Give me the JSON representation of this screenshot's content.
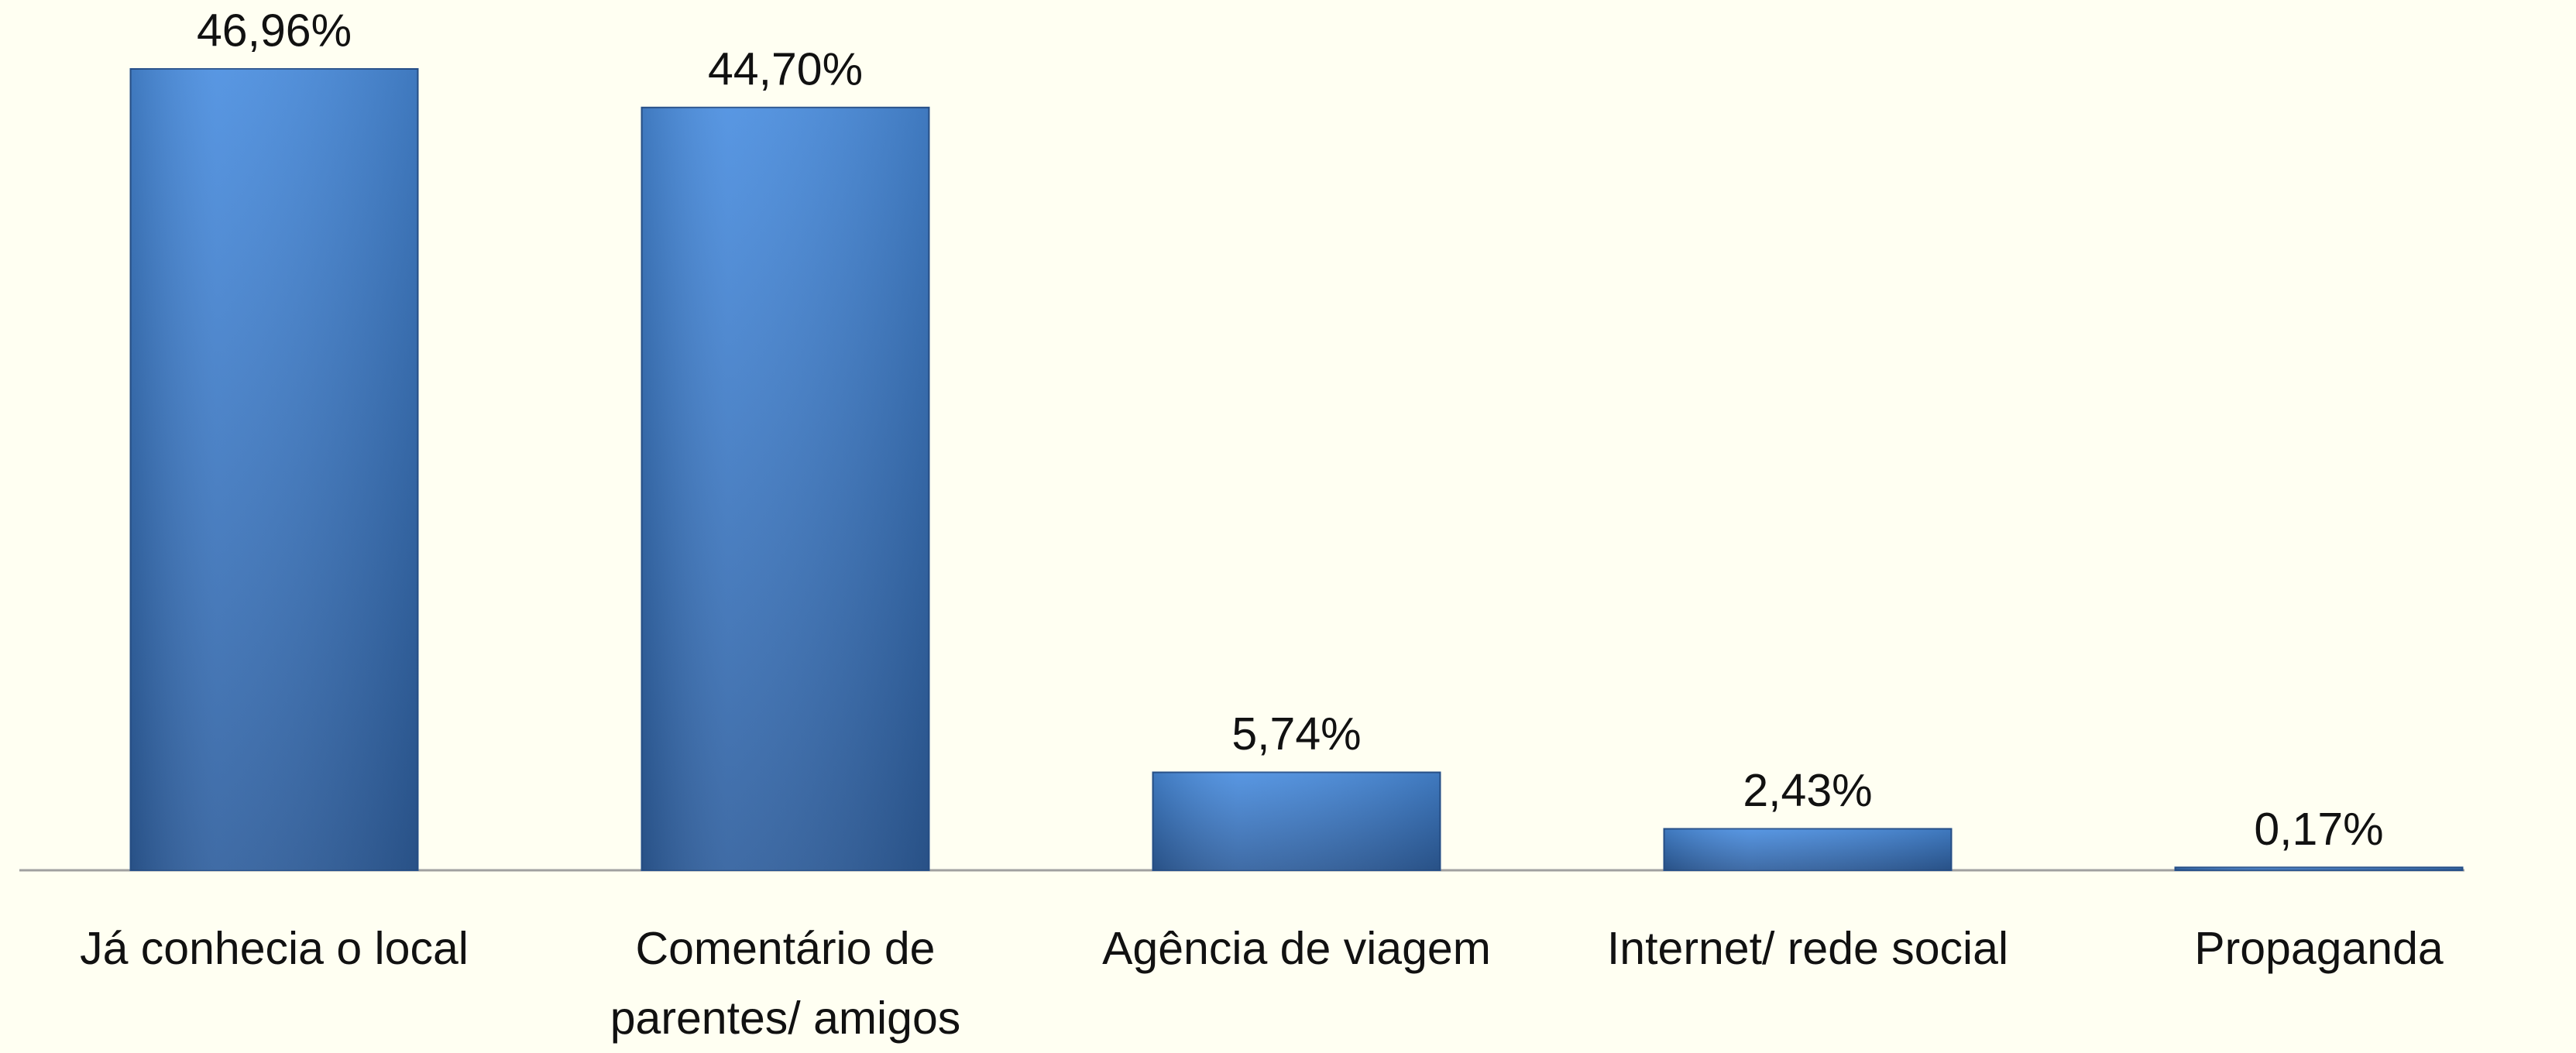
{
  "chart_data": {
    "type": "bar",
    "categories": [
      "Já conhecia o local",
      "Comentário de parentes/ amigos",
      "Agência de viagem",
      "Internet/ rede social",
      "Propaganda"
    ],
    "values": [
      46.96,
      44.7,
      5.74,
      2.43,
      0.17
    ],
    "value_labels": [
      "46,96%",
      "44,70%",
      "5,74%",
      "2,43%",
      "0,17%"
    ],
    "color": "#3f7acb"
  }
}
